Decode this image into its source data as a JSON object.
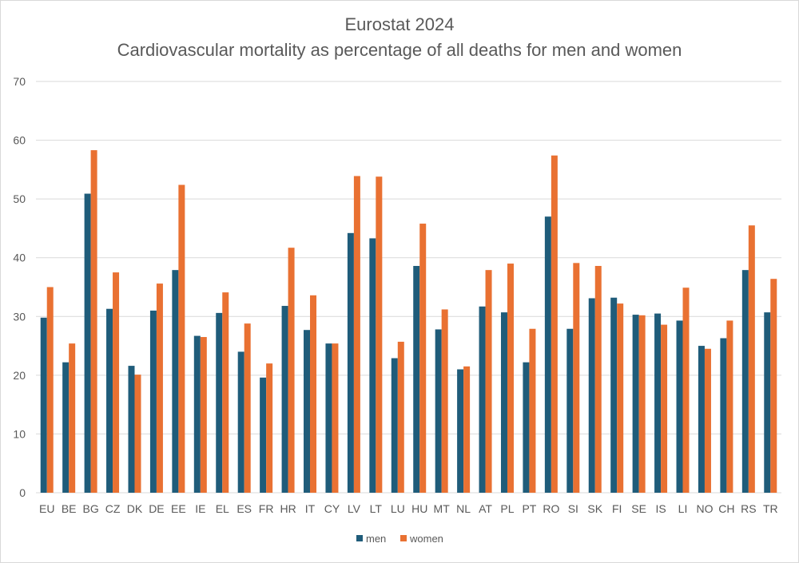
{
  "chart_data": {
    "type": "bar",
    "title_line1": "Eurostat 2024",
    "title_line2": "Cardiovascular mortality as percentage of all deaths for men and women",
    "xlabel": "",
    "ylabel": "",
    "ylim": [
      0,
      70
    ],
    "yticks": [
      0,
      10,
      20,
      30,
      40,
      50,
      60,
      70
    ],
    "grid": true,
    "legend_position": "bottom",
    "categories": [
      "EU",
      "BE",
      "BG",
      "CZ",
      "DK",
      "DE",
      "EE",
      "IE",
      "EL",
      "ES",
      "FR",
      "HR",
      "IT",
      "CY",
      "LV",
      "LT",
      "LU",
      "HU",
      "MT",
      "NL",
      "AT",
      "PL",
      "PT",
      "RO",
      "SI",
      "SK",
      "FI",
      "SE",
      "IS",
      "LI",
      "NO",
      "CH",
      "RS",
      "TR"
    ],
    "series": [
      {
        "name": "men",
        "color": "#1f5c7a",
        "values": [
          29.8,
          22.2,
          50.9,
          31.3,
          21.6,
          31.0,
          37.9,
          26.7,
          30.6,
          24.0,
          19.6,
          31.8,
          27.7,
          25.4,
          44.2,
          43.3,
          22.9,
          38.6,
          27.8,
          21.0,
          31.7,
          30.7,
          22.2,
          47.0,
          27.9,
          33.1,
          33.2,
          30.3,
          30.5,
          29.3,
          25.0,
          26.3,
          37.9,
          30.7
        ]
      },
      {
        "name": "women",
        "color": "#e97132",
        "values": [
          35.0,
          25.4,
          58.3,
          37.5,
          20.1,
          35.6,
          52.4,
          26.5,
          34.1,
          28.8,
          22.0,
          41.7,
          33.6,
          25.4,
          53.9,
          53.8,
          25.7,
          45.8,
          31.2,
          21.5,
          37.9,
          39.0,
          27.9,
          57.4,
          39.1,
          38.6,
          32.2,
          30.2,
          28.6,
          34.9,
          24.5,
          29.3,
          45.5,
          36.4
        ]
      }
    ]
  },
  "legend": {
    "men_label": "men",
    "women_label": "women"
  }
}
